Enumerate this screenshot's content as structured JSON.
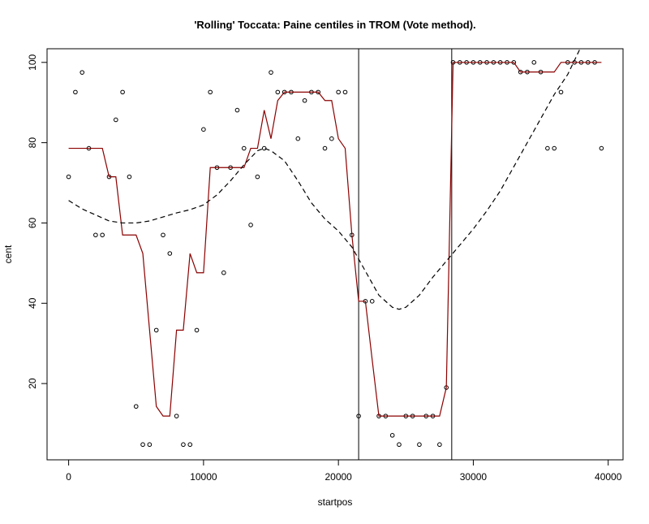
{
  "chart_data": {
    "type": "scatter",
    "title": "'Rolling' Toccata: Paine centiles in TROM (Vote method).",
    "x_label": "startpos",
    "y_label": "cent",
    "xlim": [
      -1600,
      41100
    ],
    "ylim": [
      1,
      103.4
    ],
    "xticks": [
      0,
      10000,
      20000,
      30000,
      40000
    ],
    "yticks": [
      20,
      40,
      60,
      80,
      100
    ],
    "vlines": [
      21500,
      28400
    ],
    "series": [
      {
        "kind": "points",
        "color": "#000000",
        "x": [
          0,
          500,
          1000,
          1500,
          2000,
          2500,
          3000,
          3500,
          4000,
          4500,
          5000,
          5500,
          6000,
          6500,
          7000,
          7500,
          8000,
          8500,
          9000,
          9500,
          10000,
          10500,
          11000,
          11500,
          12000,
          12500,
          13000,
          13500,
          14000,
          14500,
          15000,
          15500,
          16000,
          16500,
          17000,
          17500,
          18000,
          18500,
          19000,
          19500,
          20000,
          20500,
          21000,
          21500,
          22000,
          22500,
          23000,
          23500,
          24000,
          24500,
          25000,
          25500,
          26000,
          26500,
          27000,
          27500,
          28000,
          28500,
          29000,
          29500,
          30000,
          30500,
          31000,
          31500,
          32000,
          32500,
          33000,
          33500,
          34000,
          34500,
          35000,
          35500,
          36000,
          36500,
          37000,
          37500,
          38000,
          38500,
          39000,
          39500
        ],
        "values": [
          71.5,
          92.6,
          97.5,
          78.6,
          57,
          57,
          71.5,
          85.7,
          92.6,
          71.5,
          14.3,
          4.8,
          4.8,
          33.3,
          57,
          52.4,
          11.9,
          4.8,
          4.8,
          33.3,
          83.3,
          92.6,
          73.8,
          47.6,
          73.8,
          88.1,
          78.6,
          59.5,
          71.5,
          78.6,
          97.5,
          92.6,
          92.6,
          92.6,
          81,
          90.5,
          92.6,
          92.6,
          78.6,
          81,
          92.6,
          92.6,
          57,
          11.9,
          40.5,
          40.5,
          11.9,
          11.9,
          7.1,
          4.8,
          11.9,
          11.9,
          4.8,
          11.9,
          11.9,
          4.8,
          19,
          100,
          100,
          100,
          100,
          100,
          100,
          100,
          100,
          100,
          100,
          97.6,
          97.6,
          100,
          97.6,
          78.6,
          78.6,
          92.6,
          100,
          100,
          100,
          100,
          100,
          78.6
        ]
      },
      {
        "kind": "line",
        "color": "#8b0000",
        "dash": false,
        "x": [
          0,
          2500,
          3000,
          3500,
          4000,
          5000,
          5500,
          6000,
          6500,
          7000,
          7500,
          8000,
          8500,
          9000,
          9500,
          10000,
          10500,
          13000,
          13500,
          14000,
          14500,
          15000,
          15500,
          16000,
          18500,
          19000,
          19500,
          20000,
          20500,
          21000,
          21500,
          22000,
          22500,
          23000,
          27500,
          28000,
          28500,
          33000,
          33500,
          36000,
          36500,
          39500
        ],
        "values": [
          78.6,
          78.6,
          71.5,
          71.5,
          57,
          57,
          52.4,
          33.3,
          14.3,
          11.9,
          11.9,
          33.3,
          33.3,
          52.4,
          47.6,
          47.6,
          73.8,
          73.8,
          78.6,
          78.6,
          88.1,
          81,
          90.5,
          92.6,
          92.6,
          90.5,
          90.5,
          81,
          78.6,
          57,
          40.5,
          40.5,
          26,
          11.9,
          11.9,
          19,
          100,
          100,
          97.6,
          97.6,
          100,
          100
        ]
      },
      {
        "kind": "line",
        "color": "#000000",
        "dash": true,
        "x": [
          0,
          1000,
          2000,
          3000,
          4000,
          5000,
          6000,
          7000,
          8000,
          9000,
          10000,
          11000,
          12000,
          13000,
          14000,
          14500,
          15000,
          16000,
          17000,
          18000,
          19000,
          20000,
          21000,
          22000,
          23000,
          24000,
          24500,
          25000,
          26000,
          27000,
          28000,
          29000,
          30000,
          31000,
          32000,
          33000,
          34000,
          35000,
          36000,
          37000,
          38000
        ],
        "values": [
          65.6,
          63.5,
          62,
          60.5,
          60,
          60,
          60.5,
          61.5,
          62.5,
          63.3,
          64.5,
          67,
          70.5,
          74.5,
          78,
          78.6,
          78,
          75.5,
          70.5,
          65,
          61,
          58,
          54,
          48,
          42,
          39,
          38.5,
          39,
          42,
          46.5,
          50.5,
          54.5,
          58.5,
          63,
          68,
          74,
          80,
          86,
          92,
          97,
          104
        ]
      }
    ]
  }
}
